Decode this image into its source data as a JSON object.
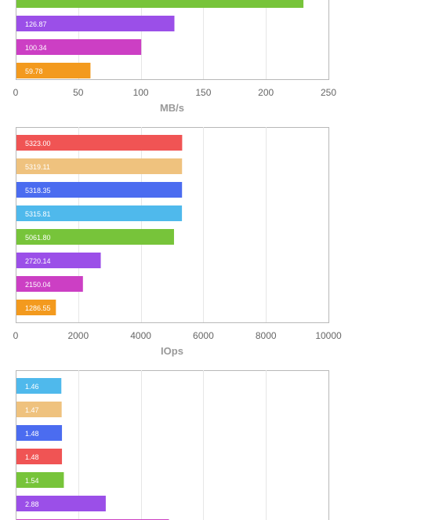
{
  "chart_data": [
    {
      "type": "bar",
      "orientation": "horizontal",
      "xlabel": "MB/s",
      "xlim": [
        0,
        250
      ],
      "xticks": [
        "0",
        "50",
        "100",
        "150",
        "200",
        "250"
      ],
      "grid": true,
      "bars": [
        {
          "value": 230,
          "label": "",
          "color": "#77c43a"
        },
        {
          "value": 126.87,
          "label": "126.87",
          "color": "#9b4fe8"
        },
        {
          "value": 100.34,
          "label": "100.34",
          "color": "#cc3fc4"
        },
        {
          "value": 59.78,
          "label": "59.78",
          "color": "#f39a1e"
        }
      ]
    },
    {
      "type": "bar",
      "orientation": "horizontal",
      "xlabel": "IOps",
      "xlim": [
        0,
        10000
      ],
      "xticks": [
        "0",
        "2000",
        "4000",
        "6000",
        "8000",
        "10000"
      ],
      "grid": true,
      "bars": [
        {
          "value": 5323.0,
          "label": "5323.00",
          "color": "#f05454"
        },
        {
          "value": 5319.11,
          "label": "5319.11",
          "color": "#efc27e"
        },
        {
          "value": 5318.35,
          "label": "5318.35",
          "color": "#4b6cf0"
        },
        {
          "value": 5315.81,
          "label": "5315.81",
          "color": "#4fb9ec"
        },
        {
          "value": 5061.8,
          "label": "5061.80",
          "color": "#77c43a"
        },
        {
          "value": 2720.14,
          "label": "2720.14",
          "color": "#9b4fe8"
        },
        {
          "value": 2150.04,
          "label": "2150.04",
          "color": "#cc3fc4"
        },
        {
          "value": 1286.55,
          "label": "1286.55",
          "color": "#f39a1e"
        }
      ]
    },
    {
      "type": "bar",
      "orientation": "horizontal",
      "xlabel": "",
      "xlim": [
        0,
        10
      ],
      "grid": true,
      "bars": [
        {
          "value": 1.46,
          "label": "1.46",
          "color": "#4fb9ec"
        },
        {
          "value": 1.47,
          "label": "1.47",
          "color": "#efc27e"
        },
        {
          "value": 1.48,
          "label": "1.48",
          "color": "#4b6cf0"
        },
        {
          "value": 1.48,
          "label": "1.48",
          "color": "#f05454"
        },
        {
          "value": 1.54,
          "label": "1.54",
          "color": "#77c43a"
        },
        {
          "value": 2.88,
          "label": "2.88",
          "color": "#9b4fe8"
        },
        {
          "value": 4.9,
          "label": "",
          "color": "#cc3fc4"
        }
      ]
    }
  ]
}
